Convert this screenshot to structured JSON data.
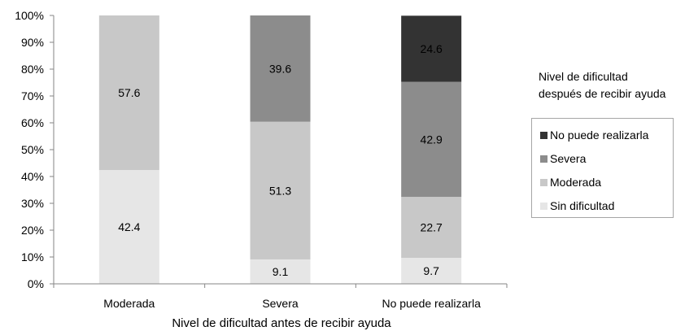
{
  "chart_data": {
    "type": "bar",
    "stacked": true,
    "categories": [
      "Moderada",
      "Severa",
      "No puede realizarla"
    ],
    "series": [
      {
        "name": "Sin dificultad",
        "values": [
          42.4,
          9.1,
          9.7
        ],
        "color": "#e6e6e6"
      },
      {
        "name": "Moderada",
        "values": [
          57.6,
          51.3,
          22.7
        ],
        "color": "#c8c8c8"
      },
      {
        "name": "Severa",
        "values": [
          0,
          39.6,
          42.9
        ],
        "color": "#8c8c8c"
      },
      {
        "name": "No puede realizarla",
        "values": [
          0,
          0,
          24.6
        ],
        "color": "#333333"
      }
    ],
    "xlabel": "Nivel de dificultad  antes de recibir ayuda",
    "ylabel": "",
    "ylim": [
      0,
      100
    ],
    "yticks": [
      "0%",
      "10%",
      "20%",
      "30%",
      "40%",
      "50%",
      "60%",
      "70%",
      "80%",
      "90%",
      "100%"
    ],
    "grid": false,
    "legend": {
      "title_line1": "Nivel de dificultad",
      "title_line2": "después de recibir ayuda",
      "position": "right",
      "order": [
        "No puede realizarla",
        "Severa",
        "Moderada",
        "Sin dificultad"
      ]
    }
  }
}
